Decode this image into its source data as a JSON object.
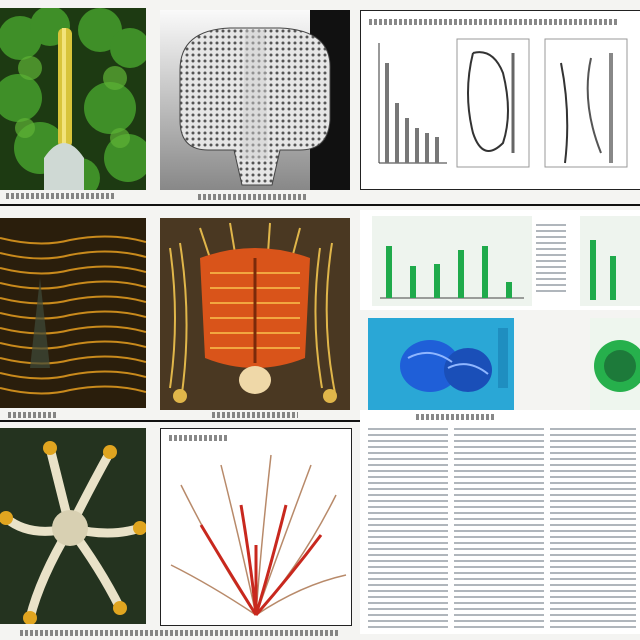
{
  "collage": {
    "colors": {
      "page_bg": "#f4f4f2",
      "panel_border": "#0d0d0d",
      "moss_green": "#3f8f28",
      "stem_yellow": "#d8c43a",
      "tentacle_orange": "#c98a1c",
      "vessel_red": "#c8281e",
      "chart_green": "#1faa4b",
      "scan_blue": "#1f5fd8",
      "cyan_bg": "#2aa7d6"
    },
    "icons": [
      "plant-image",
      "lattice-specimen-image",
      "tentacle-specimen-image",
      "organ-specimen-image",
      "starfish-image",
      "vascular-image",
      "blue-scan-image",
      "green-scan-image"
    ]
  }
}
